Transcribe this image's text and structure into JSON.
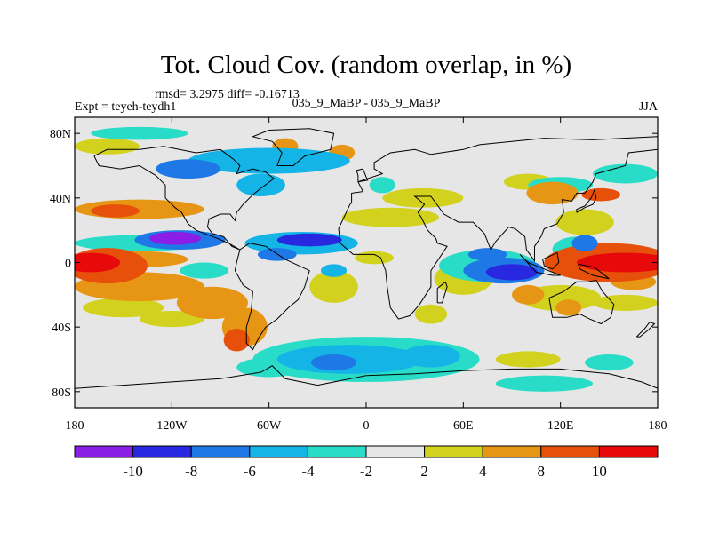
{
  "chart_data": {
    "type": "heatmap",
    "title": "Tot. Cloud Cov. (random overlap, in %)",
    "stats_line": "rmsd= 3.2975 diff= -0.16713",
    "left_label": "Expt = teyeh-teydh1",
    "center_label": "035_9_MaBP - 035_9_MaBP",
    "right_label": "JJA",
    "x_ticks": [
      {
        "value": -180,
        "label": "180"
      },
      {
        "value": -120,
        "label": "120W"
      },
      {
        "value": -60,
        "label": "60W"
      },
      {
        "value": 0,
        "label": "0"
      },
      {
        "value": 60,
        "label": "60E"
      },
      {
        "value": 120,
        "label": "120E"
      },
      {
        "value": 180,
        "label": "180"
      }
    ],
    "y_ticks": [
      {
        "value": 80,
        "label": "80N"
      },
      {
        "value": 40,
        "label": "40N"
      },
      {
        "value": 0,
        "label": "0"
      },
      {
        "value": -40,
        "label": "40S"
      },
      {
        "value": -80,
        "label": "80S"
      }
    ],
    "xlim": [
      -180,
      180
    ],
    "ylim": [
      -90,
      90
    ],
    "colorbar": {
      "bins": [
        {
          "color": "#8a1ee6",
          "label": ""
        },
        {
          "color": "#2828e0",
          "label": "-10"
        },
        {
          "color": "#1e78e6",
          "label": "-8"
        },
        {
          "color": "#14b4e6",
          "label": "-6"
        },
        {
          "color": "#28dcc8",
          "label": "-4"
        },
        {
          "color": "#e6e6e6",
          "label": "-2"
        },
        {
          "color": "#d2d21e",
          "label": "2"
        },
        {
          "color": "#e69614",
          "label": "4"
        },
        {
          "color": "#e6500a",
          "label": "8"
        },
        {
          "color": "#e60a0a",
          "label": "10"
        }
      ]
    },
    "regions": [
      {
        "lon": 160,
        "lat": 0,
        "rlon": 30,
        "rlat": 6,
        "level": 5
      },
      {
        "lon": -170,
        "lat": 0,
        "rlon": 18,
        "rlat": 6,
        "level": 5
      },
      {
        "lon": 150,
        "lat": 0,
        "rlon": 40,
        "rlat": 12,
        "level": 3
      },
      {
        "lon": -160,
        "lat": -2,
        "rlon": 25,
        "rlat": 11,
        "level": 3
      },
      {
        "lon": -140,
        "lat": 2,
        "rlon": 30,
        "rlat": 5,
        "level": 2
      },
      {
        "lon": -140,
        "lat": -15,
        "rlon": 40,
        "rlat": 9,
        "level": 2
      },
      {
        "lon": -150,
        "lat": -28,
        "rlon": 25,
        "rlat": 6,
        "level": 1
      },
      {
        "lon": -140,
        "lat": 33,
        "rlon": 40,
        "rlat": 6,
        "level": 2
      },
      {
        "lon": -155,
        "lat": 32,
        "rlon": 15,
        "rlat": 4,
        "level": 3
      },
      {
        "lon": -95,
        "lat": -25,
        "rlon": 22,
        "rlat": 10,
        "level": 2
      },
      {
        "lon": -75,
        "lat": -40,
        "rlon": 14,
        "rlat": 12,
        "level": 2
      },
      {
        "lon": -80,
        "lat": -48,
        "rlon": 8,
        "rlat": 7,
        "level": 3
      },
      {
        "lon": -20,
        "lat": -15,
        "rlon": 15,
        "rlat": 10,
        "level": 1
      },
      {
        "lon": 5,
        "lat": 3,
        "rlon": 12,
        "rlat": 4,
        "level": 1
      },
      {
        "lon": 15,
        "lat": 28,
        "rlon": 30,
        "rlat": 6,
        "level": 1
      },
      {
        "lon": 35,
        "lat": 40,
        "rlon": 25,
        "rlat": 6,
        "level": 1
      },
      {
        "lon": 100,
        "lat": 50,
        "rlon": 15,
        "rlat": 5,
        "level": 1
      },
      {
        "lon": 115,
        "lat": 43,
        "rlon": 16,
        "rlat": 7,
        "level": 2
      },
      {
        "lon": 145,
        "lat": 42,
        "rlon": 12,
        "rlat": 4,
        "level": 3
      },
      {
        "lon": 135,
        "lat": 25,
        "rlon": 18,
        "rlat": 8,
        "level": 1
      },
      {
        "lon": 120,
        "lat": -22,
        "rlon": 25,
        "rlat": 8,
        "level": 1
      },
      {
        "lon": 125,
        "lat": -28,
        "rlon": 8,
        "rlat": 5,
        "level": 2
      },
      {
        "lon": 100,
        "lat": -20,
        "rlon": 10,
        "rlat": 6,
        "level": 2
      },
      {
        "lon": 160,
        "lat": -25,
        "rlon": 20,
        "rlat": 5,
        "level": 1
      },
      {
        "lon": 165,
        "lat": -12,
        "rlon": 14,
        "rlat": 5,
        "level": 2
      },
      {
        "lon": 60,
        "lat": -10,
        "rlon": 18,
        "rlat": 10,
        "level": 1
      },
      {
        "lon": 40,
        "lat": -32,
        "rlon": 10,
        "rlat": 6,
        "level": 1
      },
      {
        "lon": 100,
        "lat": -60,
        "rlon": 20,
        "rlat": 5,
        "level": 1
      },
      {
        "lon": -120,
        "lat": -35,
        "rlon": 20,
        "rlat": 5,
        "level": 1
      },
      {
        "lon": -160,
        "lat": 72,
        "rlon": 20,
        "rlat": 5,
        "level": 1
      },
      {
        "lon": -50,
        "lat": 72,
        "rlon": 8,
        "rlat": 5,
        "level": 2
      },
      {
        "lon": -15,
        "lat": 68,
        "rlon": 8,
        "rlat": 5,
        "level": 2
      },
      {
        "lon": -140,
        "lat": 12,
        "rlon": 40,
        "rlat": 5,
        "level": -1
      },
      {
        "lon": -115,
        "lat": 14,
        "rlon": 28,
        "rlat": 6,
        "level": -3
      },
      {
        "lon": -118,
        "lat": 15,
        "rlon": 16,
        "rlat": 4,
        "level": -5
      },
      {
        "lon": -40,
        "lat": 12,
        "rlon": 35,
        "rlat": 7,
        "level": -2
      },
      {
        "lon": -35,
        "lat": 14,
        "rlon": 20,
        "rlat": 4,
        "level": -4
      },
      {
        "lon": -55,
        "lat": 5,
        "rlon": 12,
        "rlat": 4,
        "level": -3
      },
      {
        "lon": 75,
        "lat": -2,
        "rlon": 30,
        "rlat": 10,
        "level": -1
      },
      {
        "lon": 85,
        "lat": -5,
        "rlon": 25,
        "rlat": 8,
        "level": -3
      },
      {
        "lon": 90,
        "lat": -6,
        "rlon": 16,
        "rlat": 5,
        "level": -4
      },
      {
        "lon": 130,
        "lat": 8,
        "rlon": 15,
        "rlat": 8,
        "level": -1
      },
      {
        "lon": 135,
        "lat": 12,
        "rlon": 8,
        "rlat": 5,
        "level": -3
      },
      {
        "lon": 75,
        "lat": 5,
        "rlon": 12,
        "rlat": 4,
        "level": -3
      },
      {
        "lon": -60,
        "lat": 63,
        "rlon": 50,
        "rlat": 8,
        "level": -2
      },
      {
        "lon": -140,
        "lat": 80,
        "rlon": 30,
        "rlat": 4,
        "level": -1
      },
      {
        "lon": -110,
        "lat": 58,
        "rlon": 20,
        "rlat": 6,
        "level": -3
      },
      {
        "lon": -65,
        "lat": 48,
        "rlon": 15,
        "rlat": 7,
        "level": -2
      },
      {
        "lon": 120,
        "lat": 48,
        "rlon": 20,
        "rlat": 5,
        "level": -1
      },
      {
        "lon": 160,
        "lat": 55,
        "rlon": 20,
        "rlat": 6,
        "level": -1
      },
      {
        "lon": 10,
        "lat": 48,
        "rlon": 8,
        "rlat": 5,
        "level": -1
      },
      {
        "lon": 0,
        "lat": -60,
        "rlon": 70,
        "rlat": 14,
        "level": -1
      },
      {
        "lon": -10,
        "lat": -60,
        "rlon": 45,
        "rlat": 9,
        "level": -2
      },
      {
        "lon": -20,
        "lat": -62,
        "rlon": 14,
        "rlat": 5,
        "level": -3
      },
      {
        "lon": 40,
        "lat": -58,
        "rlon": 18,
        "rlat": 7,
        "level": -2
      },
      {
        "lon": -60,
        "lat": -65,
        "rlon": 20,
        "rlat": 6,
        "level": -1
      },
      {
        "lon": 110,
        "lat": -75,
        "rlon": 30,
        "rlat": 5,
        "level": -1
      },
      {
        "lon": 150,
        "lat": -62,
        "rlon": 15,
        "rlat": 5,
        "level": -1
      },
      {
        "lon": -100,
        "lat": -5,
        "rlon": 15,
        "rlat": 5,
        "level": -1
      },
      {
        "lon": -20,
        "lat": -5,
        "rlon": 8,
        "rlat": 4,
        "level": -2
      }
    ]
  }
}
